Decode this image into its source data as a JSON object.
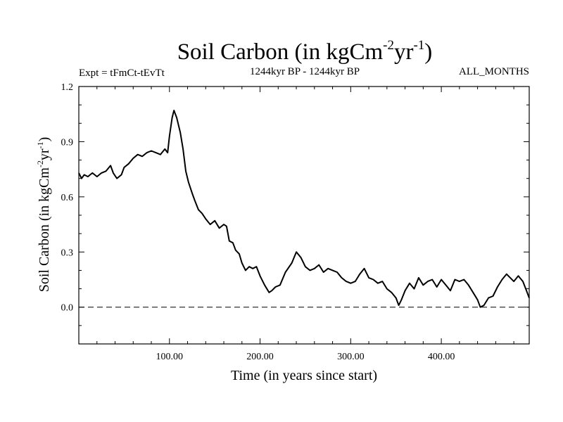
{
  "chart_data": {
    "type": "line",
    "title": {
      "base": "Soil Carbon (in kgCm",
      "sup1": "-2",
      "mid": "yr",
      "sup2": "-1",
      "end": ")"
    },
    "subtitle_left": "Expt = tFmCt-tEvTt",
    "subtitle_center": "1244kyr BP - 1244kyr BP",
    "subtitle_right": "ALL_MONTHS",
    "xlabel": "Time (in years since start)",
    "ylabel": {
      "base": "Soil Carbon (in kgCm",
      "sup1": "-2",
      "mid": "yr",
      "sup2": "-1",
      "end": ")"
    },
    "xlim": [
      0,
      497
    ],
    "ylim": [
      -0.2,
      1.2
    ],
    "xticks": [
      {
        "value": 100,
        "label": "100.00"
      },
      {
        "value": 200,
        "label": "200.00"
      },
      {
        "value": 300,
        "label": "300.00"
      },
      {
        "value": 400,
        "label": "400.00"
      }
    ],
    "yticks": [
      {
        "value": 1.2,
        "label": "1.2"
      },
      {
        "value": 0.9,
        "label": "0.9"
      },
      {
        "value": 0.6,
        "label": "0.6"
      },
      {
        "value": 0.3,
        "label": "0.3"
      },
      {
        "value": 0.0,
        "label": "0.0"
      }
    ],
    "reference_line": {
      "value": 0.0,
      "style": "dashed"
    },
    "series": [
      {
        "name": "Soil Carbon",
        "x": [
          0,
          3,
          6,
          10,
          15,
          20,
          25,
          30,
          35,
          38,
          42,
          47,
          50,
          55,
          60,
          65,
          70,
          75,
          80,
          85,
          90,
          95,
          98,
          100,
          103,
          105,
          108,
          112,
          115,
          118,
          121,
          125,
          128,
          132,
          136,
          140,
          145,
          150,
          155,
          160,
          163,
          166,
          170,
          173,
          177,
          180,
          184,
          188,
          192,
          196,
          200,
          205,
          210,
          213,
          217,
          222,
          228,
          235,
          240,
          245,
          250,
          255,
          260,
          265,
          270,
          275,
          280,
          285,
          290,
          295,
          300,
          305,
          310,
          315,
          320,
          325,
          330,
          335,
          340,
          345,
          350,
          353,
          356,
          360,
          365,
          370,
          375,
          380,
          385,
          390,
          395,
          400,
          405,
          410,
          415,
          420,
          425,
          430,
          435,
          440,
          443,
          447,
          452,
          457,
          462,
          467,
          472,
          476,
          480,
          485,
          490,
          494,
          497
        ],
        "y": [
          0.73,
          0.7,
          0.72,
          0.71,
          0.73,
          0.71,
          0.73,
          0.74,
          0.77,
          0.73,
          0.7,
          0.72,
          0.76,
          0.78,
          0.81,
          0.83,
          0.82,
          0.84,
          0.85,
          0.84,
          0.83,
          0.86,
          0.84,
          0.93,
          1.03,
          1.07,
          1.03,
          0.95,
          0.86,
          0.74,
          0.68,
          0.62,
          0.58,
          0.53,
          0.51,
          0.48,
          0.45,
          0.47,
          0.43,
          0.45,
          0.44,
          0.36,
          0.35,
          0.31,
          0.29,
          0.24,
          0.2,
          0.22,
          0.21,
          0.22,
          0.17,
          0.12,
          0.08,
          0.09,
          0.11,
          0.12,
          0.19,
          0.24,
          0.3,
          0.27,
          0.22,
          0.2,
          0.21,
          0.23,
          0.19,
          0.21,
          0.2,
          0.19,
          0.16,
          0.14,
          0.13,
          0.14,
          0.18,
          0.21,
          0.16,
          0.15,
          0.13,
          0.14,
          0.1,
          0.08,
          0.05,
          0.01,
          0.04,
          0.09,
          0.13,
          0.1,
          0.16,
          0.12,
          0.14,
          0.15,
          0.11,
          0.15,
          0.12,
          0.09,
          0.15,
          0.14,
          0.15,
          0.12,
          0.08,
          0.04,
          0.0,
          0.01,
          0.05,
          0.06,
          0.11,
          0.15,
          0.18,
          0.16,
          0.14,
          0.17,
          0.14,
          0.09,
          0.05
        ]
      }
    ]
  }
}
